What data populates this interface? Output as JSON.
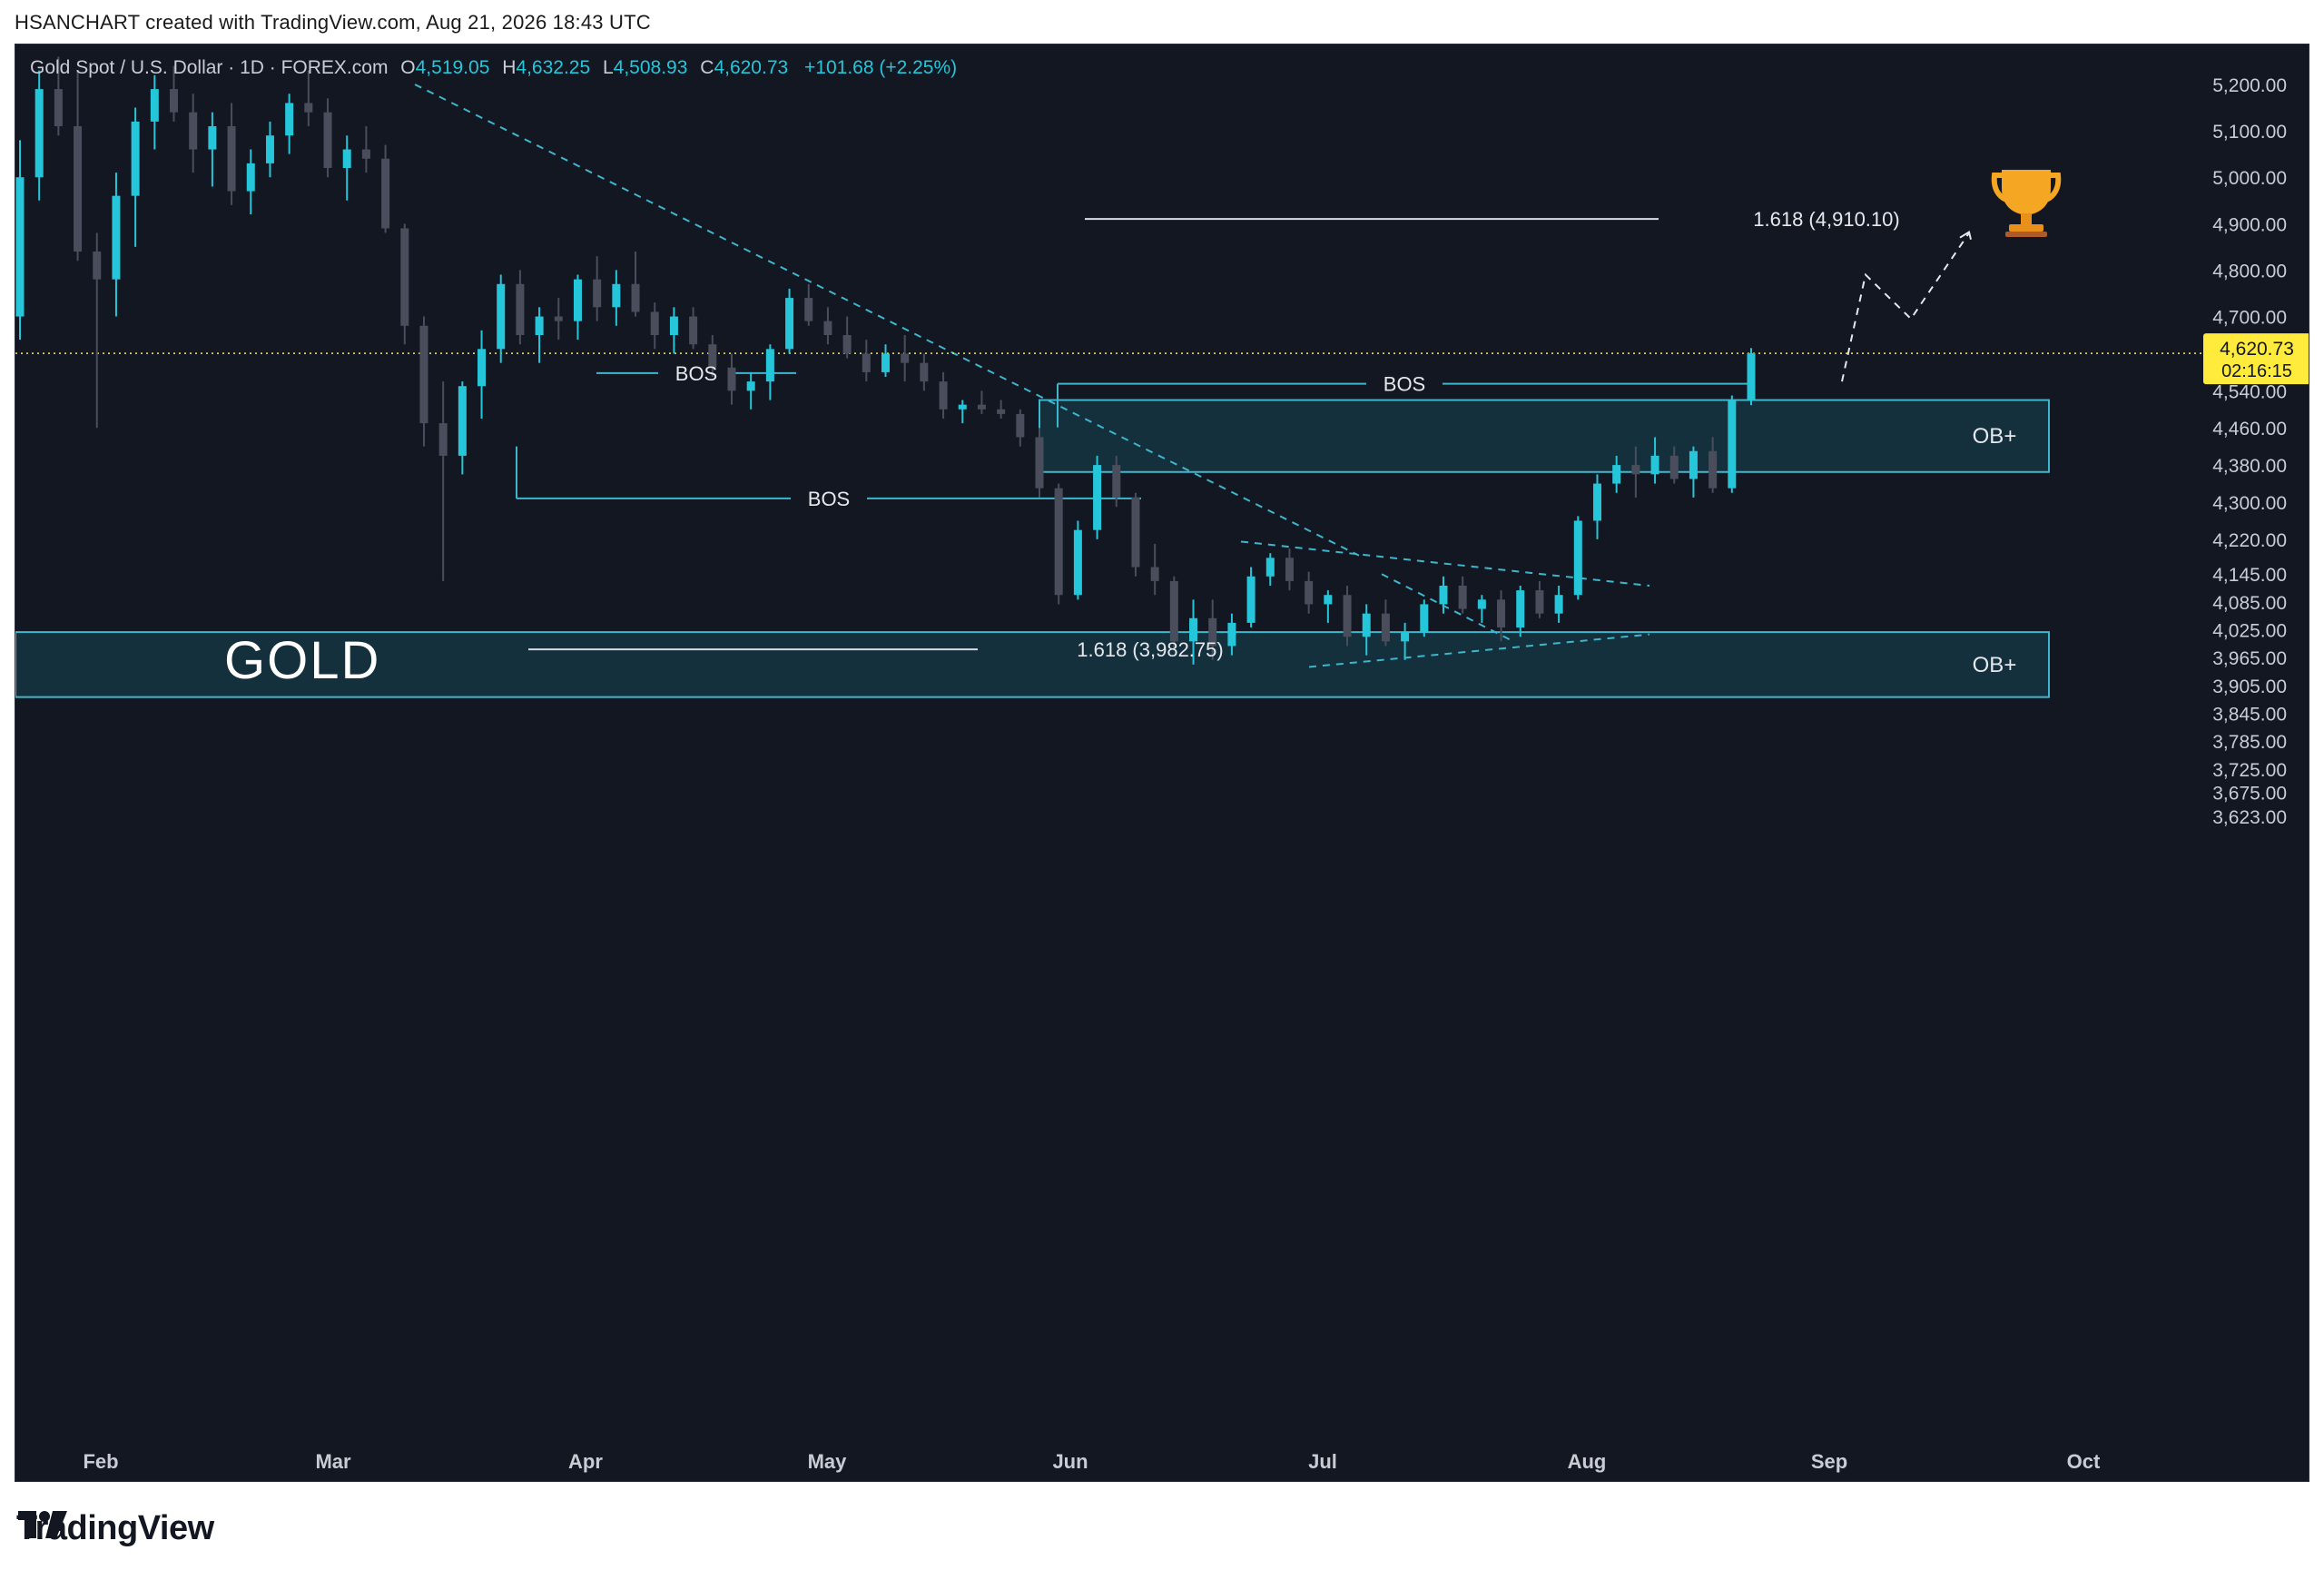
{
  "header": {
    "text": "HSANCHART created with TradingView.com, Aug 21, 2026 18:43 UTC"
  },
  "legend": {
    "symbol": "Gold Spot / U.S. Dollar · 1D · FOREX.com",
    "o_label": "O",
    "o": "4,519.05",
    "h_label": "H",
    "h": "4,632.25",
    "l_label": "L",
    "l": "4,508.93",
    "c_label": "C",
    "c": "4,620.73",
    "change": "+101.68 (+2.25%)"
  },
  "footer": {
    "brand": "TradingView"
  },
  "colors": {
    "background": "#131722",
    "bull": "#26c6da",
    "bear": "#4a4e5c",
    "zone_fill": "#143541",
    "zone_border": "#3fb6cc",
    "price_tag": "#ffeb3b"
  },
  "icons": [
    "trophy-icon",
    "tradingview-logo-icon"
  ],
  "chart_data": {
    "type": "candlestick",
    "title": "GOLD",
    "symbol": "Gold Spot / U.S. Dollar",
    "interval": "1D",
    "ylim": [
      3600,
      5250
    ],
    "y_ticks": [
      "5,200.00",
      "5,100.00",
      "5,000.00",
      "4,900.00",
      "4,800.00",
      "4,700.00",
      "4,540.00",
      "4,460.00",
      "4,380.00",
      "4,300.00",
      "4,220.00",
      "4,145.00",
      "4,085.00",
      "4,025.00",
      "3,965.00",
      "3,905.00",
      "3,845.00",
      "3,785.00",
      "3,725.00",
      "3,675.00",
      "3,623.00"
    ],
    "x_ticks": [
      "Feb",
      "Mar",
      "Apr",
      "May",
      "Jun",
      "Jul",
      "Aug",
      "Sep",
      "Oct"
    ],
    "last_price": {
      "value": "4,620.73",
      "countdown": "02:16:15"
    },
    "zones": [
      {
        "label": "OB+",
        "low": 4365,
        "high": 4520
      },
      {
        "label": "OB+",
        "low": 3880,
        "high": 4020
      }
    ],
    "levels": [
      {
        "label": "1.618 (4,910.10)",
        "value": 4910.1
      },
      {
        "label": "1.618 (3,982.75)",
        "value": 3982.75
      }
    ],
    "bos": [
      {
        "label": "BOS",
        "value": 4578
      },
      {
        "label": "BOS",
        "value": 4555
      },
      {
        "label": "BOS",
        "value": 4308
      }
    ],
    "candles": [
      [
        4700,
        5080,
        4650,
        5000
      ],
      [
        5000,
        5230,
        4950,
        5190
      ],
      [
        5190,
        5260,
        5090,
        5110
      ],
      [
        5110,
        5230,
        4820,
        4840
      ],
      [
        4840,
        4880,
        4460,
        4780
      ],
      [
        4780,
        5010,
        4700,
        4960
      ],
      [
        4960,
        5150,
        4850,
        5120
      ],
      [
        5120,
        5220,
        5060,
        5190
      ],
      [
        5190,
        5240,
        5120,
        5140
      ],
      [
        5140,
        5180,
        5010,
        5060
      ],
      [
        5060,
        5140,
        4980,
        5110
      ],
      [
        5110,
        5160,
        4940,
        4970
      ],
      [
        4970,
        5060,
        4920,
        5030
      ],
      [
        5030,
        5120,
        5000,
        5090
      ],
      [
        5090,
        5180,
        5050,
        5160
      ],
      [
        5160,
        5230,
        5110,
        5140
      ],
      [
        5140,
        5170,
        5000,
        5020
      ],
      [
        5020,
        5090,
        4950,
        5060
      ],
      [
        5060,
        5110,
        5010,
        5040
      ],
      [
        5040,
        5070,
        4880,
        4890
      ],
      [
        4890,
        4900,
        4640,
        4680
      ],
      [
        4680,
        4700,
        4420,
        4470
      ],
      [
        4470,
        4560,
        4130,
        4400
      ],
      [
        4400,
        4560,
        4360,
        4550
      ],
      [
        4550,
        4670,
        4480,
        4630
      ],
      [
        4630,
        4790,
        4600,
        4770
      ],
      [
        4770,
        4800,
        4640,
        4660
      ],
      [
        4660,
        4720,
        4600,
        4700
      ],
      [
        4700,
        4740,
        4650,
        4690
      ],
      [
        4690,
        4790,
        4650,
        4780
      ],
      [
        4780,
        4830,
        4690,
        4720
      ],
      [
        4720,
        4800,
        4680,
        4770
      ],
      [
        4770,
        4840,
        4700,
        4710
      ],
      [
        4710,
        4730,
        4630,
        4660
      ],
      [
        4660,
        4720,
        4620,
        4700
      ],
      [
        4700,
        4720,
        4630,
        4640
      ],
      [
        4640,
        4660,
        4570,
        4590
      ],
      [
        4590,
        4620,
        4510,
        4540
      ],
      [
        4540,
        4580,
        4500,
        4560
      ],
      [
        4560,
        4640,
        4520,
        4630
      ],
      [
        4630,
        4760,
        4620,
        4740
      ],
      [
        4740,
        4770,
        4680,
        4690
      ],
      [
        4690,
        4720,
        4640,
        4660
      ],
      [
        4660,
        4700,
        4610,
        4620
      ],
      [
        4620,
        4650,
        4560,
        4580
      ],
      [
        4580,
        4640,
        4570,
        4620
      ],
      [
        4620,
        4660,
        4560,
        4600
      ],
      [
        4600,
        4620,
        4540,
        4560
      ],
      [
        4560,
        4580,
        4480,
        4500
      ],
      [
        4500,
        4520,
        4470,
        4510
      ],
      [
        4510,
        4540,
        4490,
        4500
      ],
      [
        4500,
        4520,
        4480,
        4490
      ],
      [
        4490,
        4500,
        4420,
        4440
      ],
      [
        4440,
        4460,
        4310,
        4330
      ],
      [
        4330,
        4340,
        4080,
        4100
      ],
      [
        4100,
        4260,
        4090,
        4240
      ],
      [
        4240,
        4400,
        4220,
        4380
      ],
      [
        4380,
        4400,
        4290,
        4310
      ],
      [
        4310,
        4320,
        4140,
        4160
      ],
      [
        4160,
        4210,
        4100,
        4130
      ],
      [
        4130,
        4140,
        3980,
        4000
      ],
      [
        4000,
        4090,
        3950,
        4050
      ],
      [
        4050,
        4090,
        3960,
        3990
      ],
      [
        3990,
        4060,
        3970,
        4040
      ],
      [
        4040,
        4160,
        4030,
        4140
      ],
      [
        4140,
        4190,
        4120,
        4180
      ],
      [
        4180,
        4200,
        4110,
        4130
      ],
      [
        4130,
        4150,
        4060,
        4080
      ],
      [
        4080,
        4110,
        4040,
        4100
      ],
      [
        4100,
        4120,
        3990,
        4010
      ],
      [
        4010,
        4080,
        3970,
        4060
      ],
      [
        4060,
        4090,
        3990,
        4000
      ],
      [
        4000,
        4040,
        3960,
        4020
      ],
      [
        4020,
        4090,
        4010,
        4080
      ],
      [
        4080,
        4140,
        4060,
        4120
      ],
      [
        4120,
        4140,
        4060,
        4070
      ],
      [
        4070,
        4100,
        4040,
        4090
      ],
      [
        4090,
        4110,
        4000,
        4030
      ],
      [
        4030,
        4120,
        4010,
        4110
      ],
      [
        4110,
        4130,
        4050,
        4060
      ],
      [
        4060,
        4120,
        4040,
        4100
      ],
      [
        4100,
        4270,
        4090,
        4260
      ],
      [
        4260,
        4360,
        4220,
        4340
      ],
      [
        4340,
        4400,
        4320,
        4380
      ],
      [
        4380,
        4420,
        4310,
        4360
      ],
      [
        4360,
        4440,
        4340,
        4400
      ],
      [
        4400,
        4420,
        4340,
        4350
      ],
      [
        4350,
        4420,
        4310,
        4410
      ],
      [
        4410,
        4440,
        4320,
        4330
      ],
      [
        4330,
        4530,
        4320,
        4520
      ],
      [
        4520,
        4632,
        4509,
        4621
      ]
    ]
  }
}
